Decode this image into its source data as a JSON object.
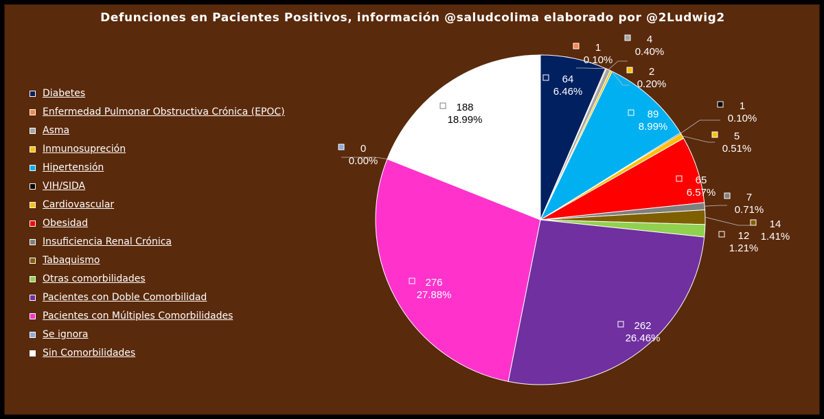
{
  "chart_data": {
    "type": "pie",
    "title": "Defunciones en Pacientes Positivos, información @saludcolima elaborado por @2Ludwig2",
    "legend_position": "left",
    "start_angle_deg": 0,
    "direction": "clockwise",
    "slices": [
      {
        "name": "Diabetes",
        "value": 64,
        "percent": "6.46%",
        "color": "#002060"
      },
      {
        "name": "Enfermedad Pulmonar Obstructiva Crónica (EPOC)",
        "value": 1,
        "percent": "0.10%",
        "color": "#f4874b"
      },
      {
        "name": "Asma",
        "value": 4,
        "percent": "0.40%",
        "color": "#a5a5a5"
      },
      {
        "name": "Inmunosupreción",
        "value": 2,
        "percent": "0.20%",
        "color": "#ffc000"
      },
      {
        "name": "Hipertensión",
        "value": 89,
        "percent": "8.99%",
        "color": "#00b0f0"
      },
      {
        "name": "VIH/SIDA",
        "value": 1,
        "percent": "0.10%",
        "color": "#000000"
      },
      {
        "name": "Cardiovascular",
        "value": 5,
        "percent": "0.51%",
        "color": "#ffc000"
      },
      {
        "name": "Obesidad",
        "value": 65,
        "percent": "6.57%",
        "color": "#ff0000"
      },
      {
        "name": "Insuficiencia Renal Crónica",
        "value": 7,
        "percent": "0.71%",
        "color": "#7f7f7f"
      },
      {
        "name": "Tabaquismo",
        "value": 14,
        "percent": "1.41%",
        "color": "#7f6000"
      },
      {
        "name": "Otras comorbilidades",
        "value": 12,
        "percent": "1.21%",
        "color": "#92d050"
      },
      {
        "name": "Pacientes con Doble Comorbilidad",
        "value": 262,
        "percent": "26.46%",
        "color": "#7030a0"
      },
      {
        "name": "Pacientes con Múltiples Comorbilidades",
        "value": 276,
        "percent": "27.88%",
        "color": "#ff33cc"
      },
      {
        "name": "Se ignora",
        "value": 0,
        "percent": "0.00%",
        "color": "#8eaadb"
      },
      {
        "name": "Sin Comorbilidades",
        "value": 188,
        "percent": "18.99%",
        "color": "#ffffff"
      }
    ]
  }
}
